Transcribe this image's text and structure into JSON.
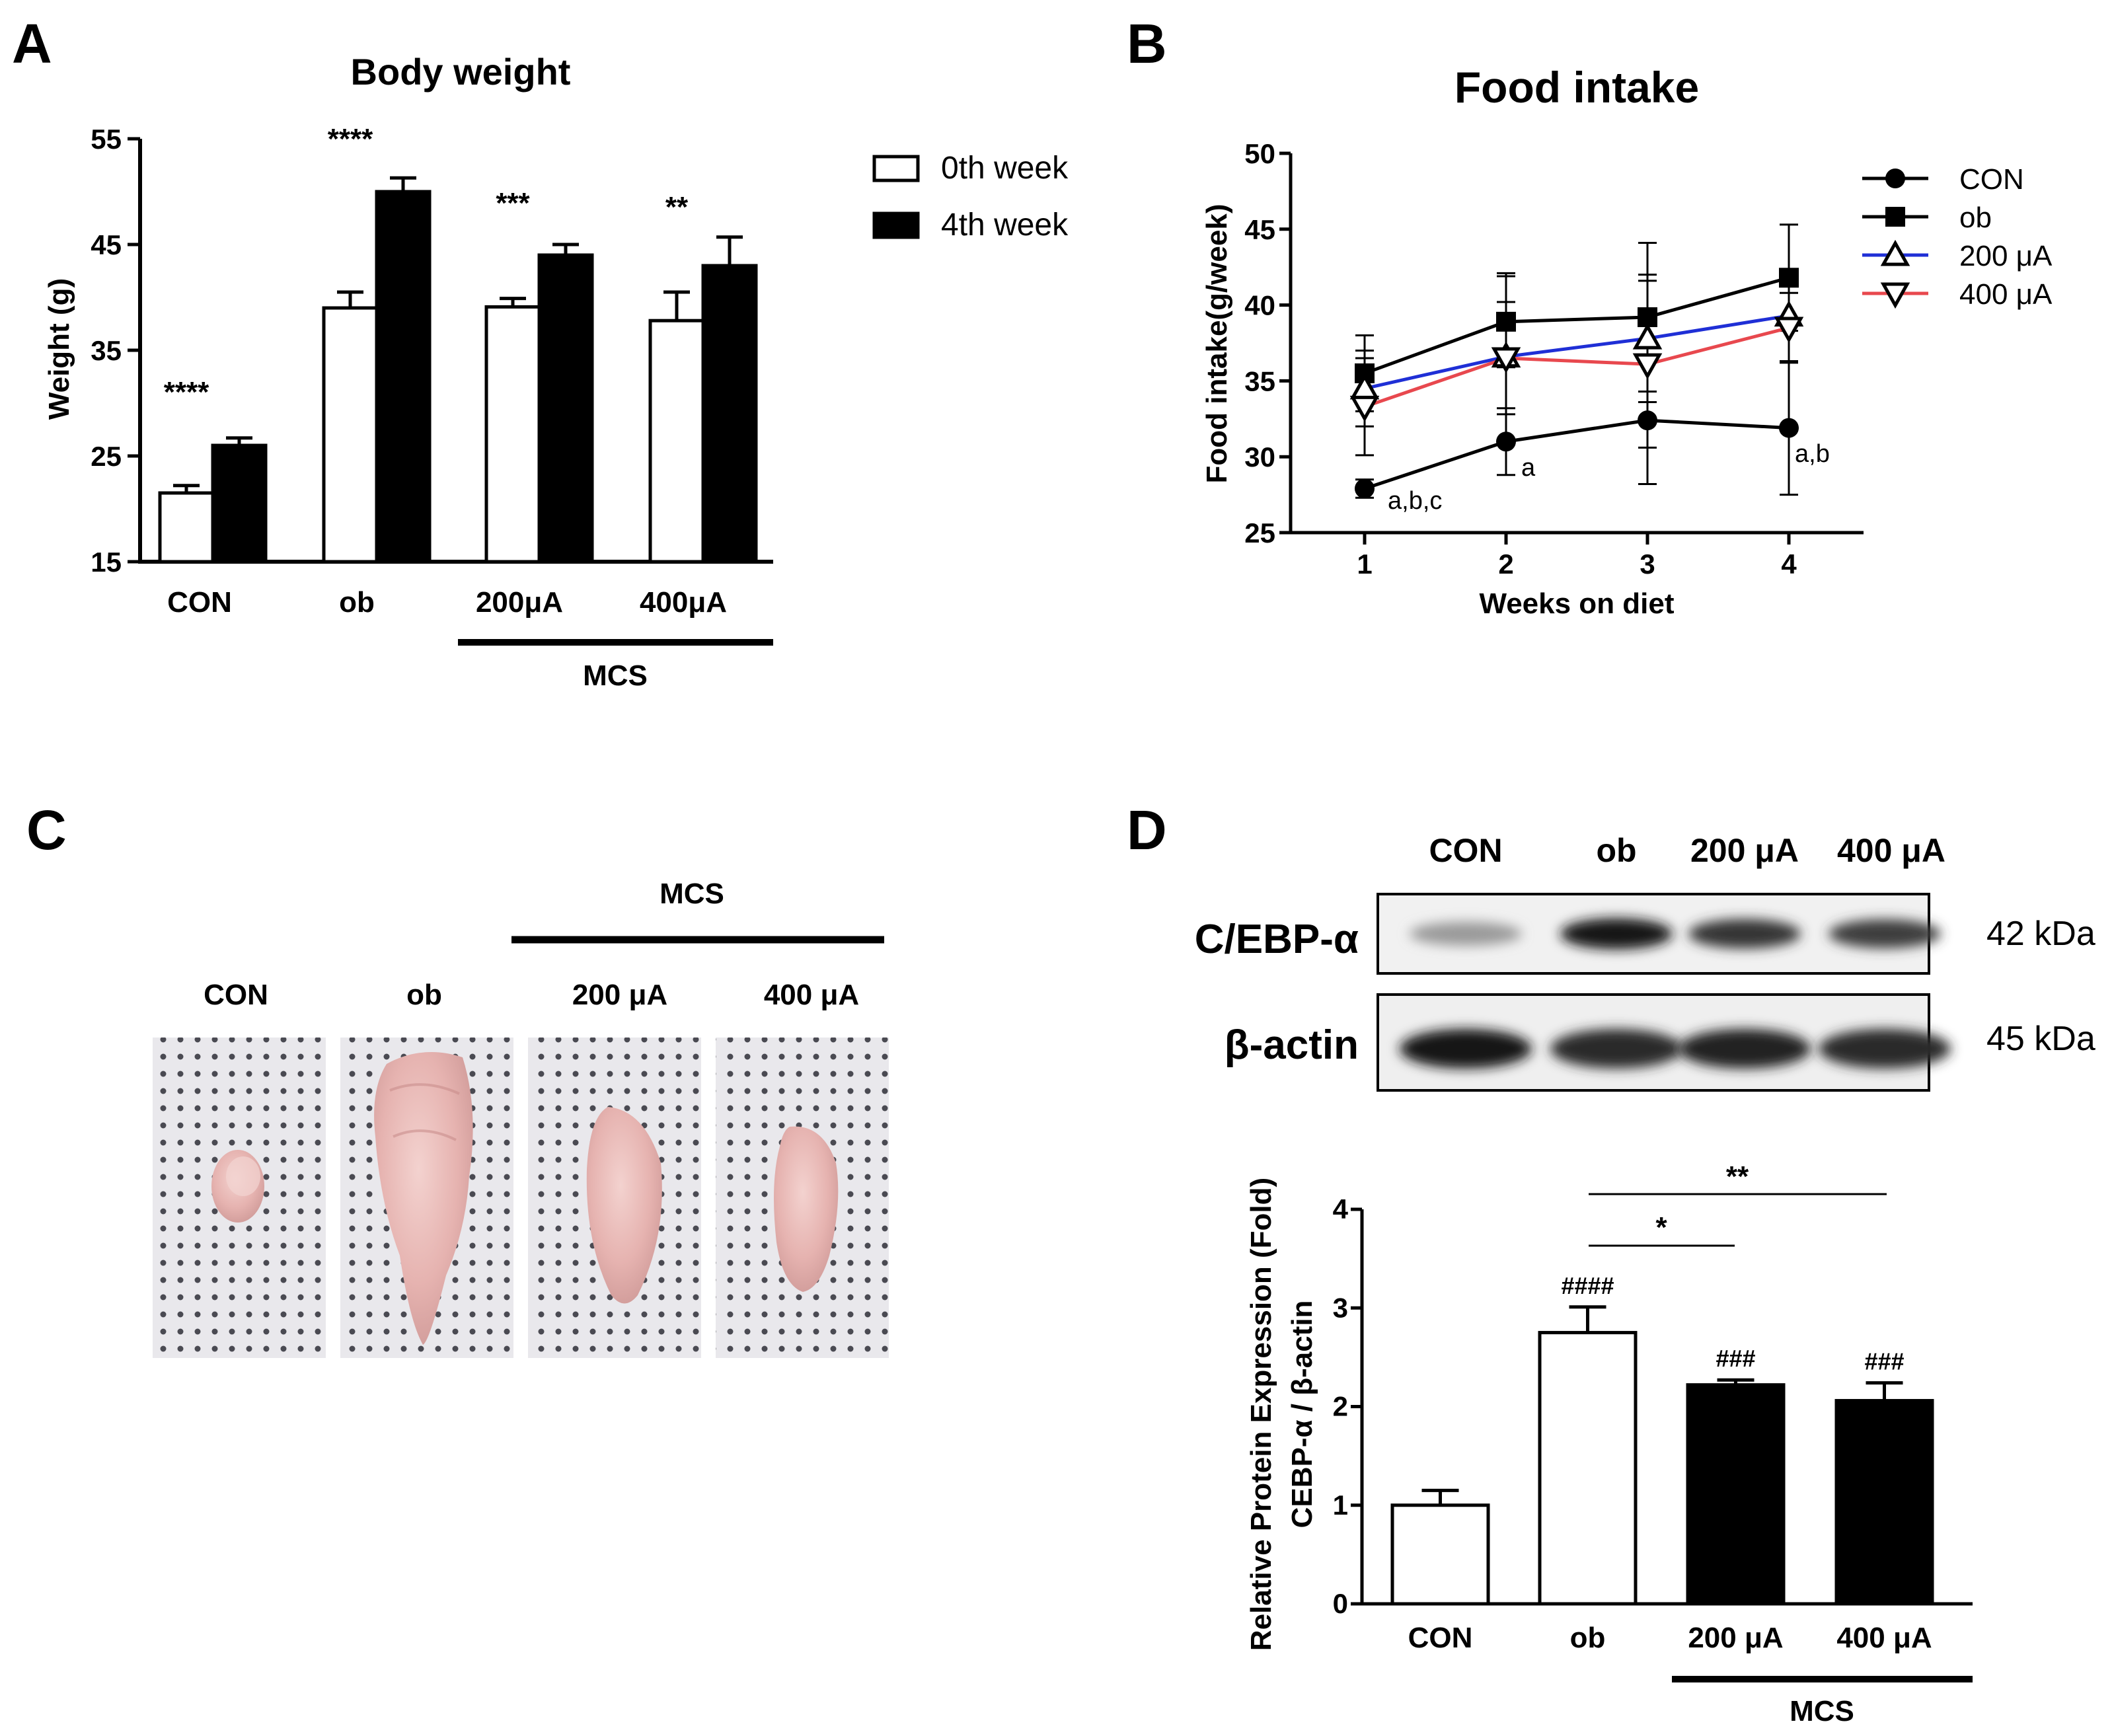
{
  "panels": {
    "a": "A",
    "b": "B",
    "c": "C",
    "d": "D"
  },
  "chart_data": [
    {
      "id": "A",
      "type": "bar",
      "title": "Body weight",
      "xlabel": "",
      "ylabel": "Weight (g)",
      "ylim": [
        15,
        55
      ],
      "yticks": [
        "15",
        "25",
        "35",
        "45",
        "55"
      ],
      "categories": [
        "CON",
        "ob",
        "200μA",
        "400μA"
      ],
      "series": [
        {
          "name": "0th week",
          "values": [
            21.5,
            39.0,
            39.1,
            37.8
          ],
          "errors": [
            0.7,
            1.5,
            0.8,
            2.7
          ],
          "fill": "#ffffff"
        },
        {
          "name": "4th week",
          "values": [
            26.0,
            50.0,
            44.0,
            43.0
          ],
          "errors": [
            0.7,
            1.3,
            1.0,
            2.7
          ],
          "fill": "#000000"
        }
      ],
      "significance": [
        "****",
        "****",
        "***",
        "**"
      ],
      "group_label": "MCS",
      "legend_position": "top-right"
    },
    {
      "id": "B",
      "type": "line",
      "title": "Food intake",
      "xlabel": "Weeks on diet",
      "ylabel": "Food intake(g/week)",
      "x": [
        1,
        2,
        3,
        4
      ],
      "xticks": [
        "1",
        "2",
        "3",
        "4"
      ],
      "ylim": [
        25,
        50
      ],
      "yticks": [
        "25",
        "30",
        "35",
        "40",
        "45",
        "50"
      ],
      "series": [
        {
          "name": "CON",
          "values": [
            27.9,
            31.0,
            32.4,
            31.9
          ],
          "errors": [
            0.6,
            2.2,
            4.2,
            4.4
          ],
          "color": "#000000",
          "marker": "circle"
        },
        {
          "name": "ob",
          "values": [
            35.5,
            38.9,
            39.2,
            41.8
          ],
          "errors": [
            2.5,
            3.0,
            4.9,
            3.5
          ],
          "color": "#000000",
          "marker": "square"
        },
        {
          "name": "200 μA",
          "values": [
            34.5,
            36.6,
            37.8,
            39.3
          ],
          "errors": [
            2.5,
            5.5,
            4.2,
            3.0
          ],
          "color": "#1f2fd6",
          "marker": "triangle-up"
        },
        {
          "name": "400 μA",
          "values": [
            33.3,
            36.5,
            36.1,
            38.5
          ],
          "errors": [
            3.2,
            3.7,
            5.5,
            2.3
          ],
          "color": "#e8484e",
          "marker": "triangle-down"
        }
      ],
      "annotations": [
        "a,b,c",
        "a",
        "a,b"
      ],
      "legend_position": "top-right"
    },
    {
      "id": "D",
      "type": "bar",
      "title": "",
      "xlabel": "",
      "ylabel": [
        "Relative Protein Expression (Fold)",
        "CEBP-α / β-actin"
      ],
      "ylim": [
        0,
        4
      ],
      "yticks": [
        "0",
        "1",
        "2",
        "3",
        "4"
      ],
      "categories": [
        "CON",
        "ob",
        "200 μA",
        "400 μA"
      ],
      "values": [
        1.0,
        2.75,
        2.22,
        2.06
      ],
      "errors": [
        0.15,
        0.26,
        0.05,
        0.18
      ],
      "fills": [
        "#ffffff",
        "#ffffff",
        "#000000",
        "#000000"
      ],
      "hash_labels": [
        "",
        "####",
        "###",
        "###"
      ],
      "comparisons": [
        {
          "label": "*",
          "from": "ob",
          "to": "200 μA"
        },
        {
          "label": "**",
          "from": "ob",
          "to": "400 μA"
        }
      ],
      "group_label": "MCS"
    }
  ],
  "photo_panel": {
    "group_label": "MCS",
    "labels": [
      "CON",
      "ob",
      "200 μA",
      "400 μA"
    ]
  },
  "blot_panel": {
    "lane_labels": [
      "CON",
      "ob",
      "200 μA",
      "400 μA"
    ],
    "rows": [
      {
        "label": "C/EBP-α",
        "kda": "42 kDa",
        "intensities": [
          0.25,
          0.95,
          0.8,
          0.75
        ]
      },
      {
        "label": "β-actin",
        "kda": "45 kDa",
        "intensities": [
          0.95,
          0.85,
          0.9,
          0.85
        ]
      }
    ]
  }
}
